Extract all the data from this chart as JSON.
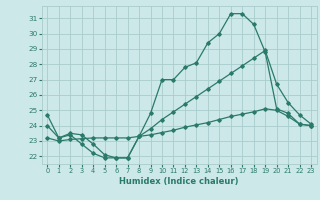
{
  "xlabel": "Humidex (Indice chaleur)",
  "background_color": "#cce8e8",
  "grid_color": "#aacccc",
  "line_color": "#2a7a6a",
  "xlim": [
    -0.5,
    23.5
  ],
  "ylim": [
    21.5,
    31.8
  ],
  "yticks": [
    22,
    23,
    24,
    25,
    26,
    27,
    28,
    29,
    30,
    31
  ],
  "xticks": [
    0,
    1,
    2,
    3,
    4,
    5,
    6,
    7,
    8,
    9,
    10,
    11,
    12,
    13,
    14,
    15,
    16,
    17,
    18,
    19,
    20,
    21,
    22,
    23
  ],
  "line1_x": [
    0,
    1,
    2,
    3,
    4,
    5,
    6,
    7,
    8,
    9,
    10,
    11,
    12,
    13,
    14,
    15,
    16,
    17,
    18,
    19,
    20,
    21,
    22,
    23
  ],
  "line1_y": [
    24.7,
    23.2,
    23.4,
    22.8,
    22.2,
    21.9,
    21.9,
    21.9,
    23.3,
    24.8,
    27.0,
    27.0,
    27.8,
    28.1,
    29.4,
    30.0,
    31.3,
    31.3,
    30.6,
    28.8,
    25.1,
    24.8,
    24.1,
    24.0
  ],
  "line2_x": [
    0,
    1,
    2,
    3,
    4,
    5,
    6,
    7,
    8,
    9,
    10,
    11,
    12,
    13,
    14,
    15,
    16,
    17,
    18,
    19,
    20,
    21,
    22,
    23
  ],
  "line2_y": [
    24.0,
    23.2,
    23.5,
    23.4,
    22.8,
    22.1,
    21.9,
    21.9,
    23.3,
    23.8,
    24.4,
    24.9,
    25.4,
    25.9,
    26.4,
    26.9,
    27.4,
    27.9,
    28.4,
    28.9,
    26.7,
    25.5,
    24.7,
    24.1
  ],
  "line3_x": [
    0,
    1,
    2,
    3,
    4,
    5,
    6,
    7,
    8,
    9,
    10,
    11,
    12,
    13,
    14,
    15,
    16,
    17,
    18,
    19,
    20,
    21,
    22,
    23
  ],
  "line3_y": [
    23.2,
    23.0,
    23.1,
    23.15,
    23.2,
    23.2,
    23.2,
    23.2,
    23.3,
    23.4,
    23.55,
    23.7,
    23.9,
    24.05,
    24.2,
    24.4,
    24.6,
    24.75,
    24.9,
    25.1,
    25.0,
    24.6,
    24.1,
    24.0
  ]
}
